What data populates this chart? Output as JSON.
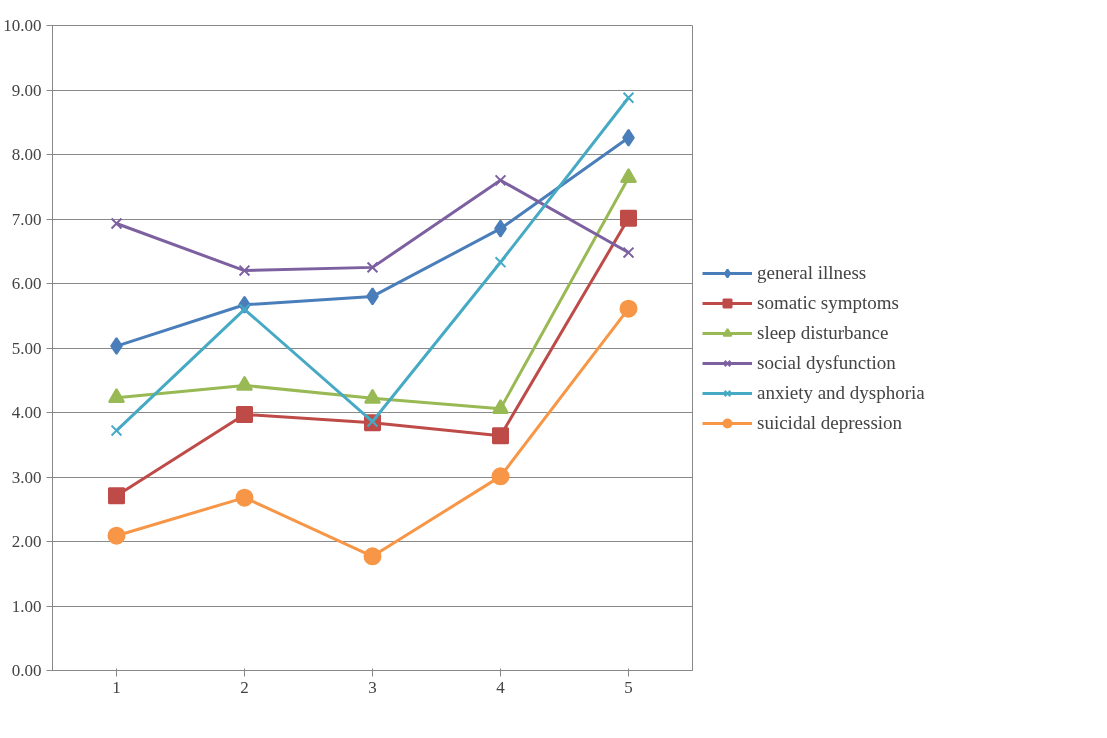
{
  "chart_data": {
    "type": "line",
    "categories": [
      "1",
      "2",
      "3",
      "4",
      "5"
    ],
    "ylim": [
      0,
      10
    ],
    "yticks": [
      {
        "value": 0,
        "label": "0.00"
      },
      {
        "value": 1,
        "label": "1.00"
      },
      {
        "value": 2,
        "label": "2.00"
      },
      {
        "value": 3,
        "label": "3.00"
      },
      {
        "value": 4,
        "label": "4.00"
      },
      {
        "value": 5,
        "label": "5.00"
      },
      {
        "value": 6,
        "label": "6.00"
      },
      {
        "value": 7,
        "label": "7.00"
      },
      {
        "value": 8,
        "label": "8.00"
      },
      {
        "value": 9,
        "label": "9.00"
      },
      {
        "value": 10,
        "label": "10.00"
      }
    ],
    "grid": "y",
    "legend": "right",
    "series": [
      {
        "name": "general illness",
        "color": "#4a7ebb",
        "marker": "diamond",
        "values": [
          5.03,
          5.67,
          5.8,
          6.85,
          8.26
        ]
      },
      {
        "name": "somatic symptoms",
        "color": "#be4b48",
        "marker": "square",
        "values": [
          2.71,
          3.97,
          3.84,
          3.64,
          7.01
        ]
      },
      {
        "name": "sleep disturbance",
        "color": "#98b954",
        "marker": "triangle",
        "values": [
          4.23,
          4.42,
          4.22,
          4.06,
          7.64
        ]
      },
      {
        "name": "social dysfunction",
        "color": "#7d60a0",
        "marker": "cross",
        "values": [
          6.93,
          6.2,
          6.25,
          7.6,
          6.48
        ]
      },
      {
        "name": "anxiety and dysphoria",
        "color": "#46aac5",
        "marker": "cross",
        "values": [
          3.72,
          5.6,
          3.86,
          6.33,
          8.88
        ]
      },
      {
        "name": "suicidal depression",
        "color": "#f79646",
        "marker": "circle",
        "values": [
          2.09,
          2.68,
          1.77,
          3.01,
          5.61
        ]
      }
    ]
  }
}
